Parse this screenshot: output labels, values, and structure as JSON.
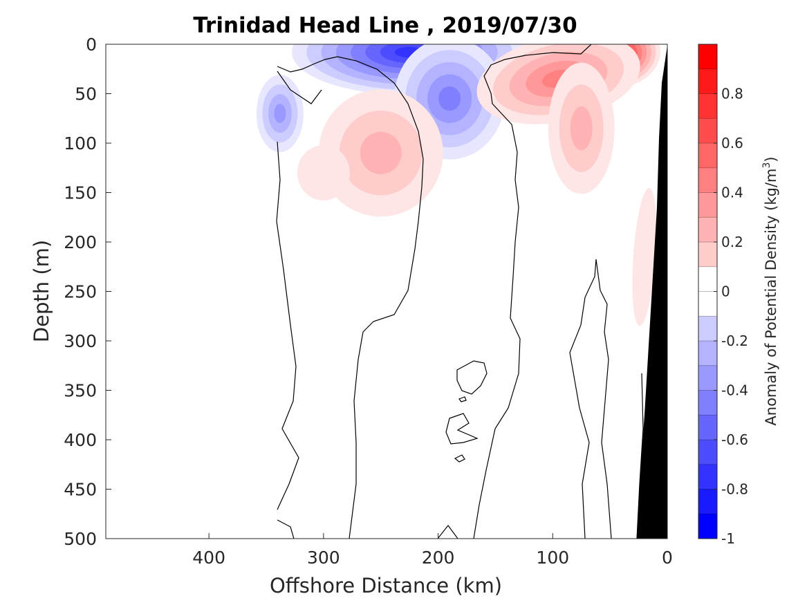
{
  "chart_data": {
    "type": "heatmap",
    "title": "Trinidad Head Line , 2019/07/30",
    "xlabel": "Offshore Distance (km)",
    "ylabel": "Depth (m)",
    "xlim": [
      490,
      0
    ],
    "ylim": [
      0,
      500
    ],
    "x_direction": "reversed",
    "y_direction": "reversed",
    "x_ticks": [
      400,
      300,
      200,
      100,
      0
    ],
    "x_tick_labels": [
      "400",
      "300",
      "200",
      "100",
      "0"
    ],
    "y_ticks": [
      0,
      50,
      100,
      150,
      200,
      250,
      300,
      350,
      400,
      450,
      500
    ],
    "y_tick_labels": [
      "0",
      "50",
      "100",
      "150",
      "200",
      "250",
      "300",
      "350",
      "400",
      "450",
      "500"
    ],
    "colorbar": {
      "label": "Anomaly of Potential Density (kg/m",
      "label_superscript": "3",
      "label_suffix": ")",
      "range": [
        -1,
        1
      ],
      "step": 0.1,
      "ticks": [
        0.8,
        0.6,
        0.4,
        0.2,
        0,
        -0.2,
        -0.4,
        -0.6,
        -0.8,
        -1
      ],
      "tick_labels": [
        "0.8",
        "0.6",
        "0.4",
        "0.2",
        "0",
        "-0.2",
        "-0.4",
        "-0.6",
        "-0.8",
        "-1"
      ],
      "negative_color": "#0000ff",
      "positive_color": "#ff0000",
      "neutral_color": "#ffffff"
    },
    "data_coverage_km": [
      340,
      0
    ],
    "bathymetry_color": "#000000",
    "zero_contour_color": "#000000",
    "features": [
      {
        "sign": "negative",
        "peak_value": -0.8,
        "center_km": 225,
        "center_depth_m": 8
      },
      {
        "sign": "negative",
        "peak_value": -0.5,
        "center_km": 190,
        "center_depth_m": 55
      },
      {
        "sign": "negative",
        "peak_value": -0.4,
        "center_km": 338,
        "center_depth_m": 70
      },
      {
        "sign": "negative",
        "peak_value": -0.3,
        "center_km": 90,
        "center_depth_m": 3
      },
      {
        "sign": "positive",
        "peak_value": 0.95,
        "center_km": 42,
        "center_depth_m": 10
      },
      {
        "sign": "positive",
        "peak_value": 0.5,
        "center_km": 95,
        "center_depth_m": 35
      },
      {
        "sign": "positive",
        "peak_value": 0.3,
        "center_km": 75,
        "center_depth_m": 85
      },
      {
        "sign": "positive",
        "peak_value": 0.35,
        "center_km": 250,
        "center_depth_m": 110
      },
      {
        "sign": "positive",
        "peak_value": 0.15,
        "center_km": 300,
        "center_depth_m": 130
      },
      {
        "sign": "positive",
        "peak_value": 0.15,
        "center_km": 20,
        "center_depth_m": 215
      }
    ]
  }
}
